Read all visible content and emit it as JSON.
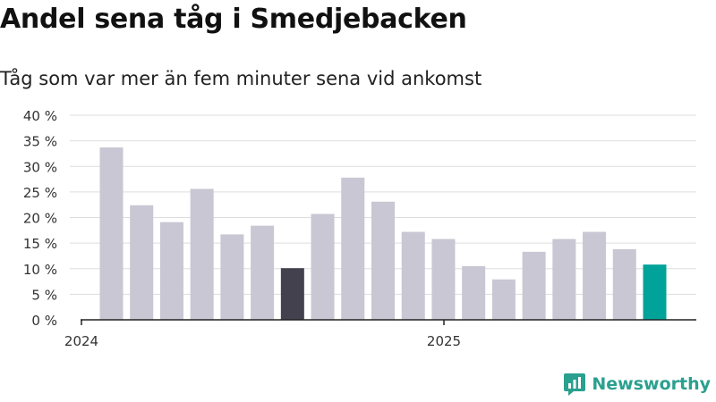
{
  "title": "Andel sena tåg i Smedjebacken",
  "subtitle": "Tåg som var mer än fem minuter sena vid ankomst",
  "brand": "Newsworthy",
  "colors": {
    "bar": "#c8c7d3",
    "highlight_dark": "#43414e",
    "highlight_accent": "#00a39a",
    "grid": "#dddddd",
    "brand": "#2aa08f"
  },
  "chart_data": {
    "type": "bar",
    "title": "Andel sena tåg i Smedjebacken",
    "subtitle": "Tåg som var mer än fem minuter sena vid ankomst",
    "xlabel": "",
    "ylabel": "",
    "ylim": [
      0,
      40
    ],
    "yticks": [
      "0 %",
      "5 %",
      "10 %",
      "15 %",
      "20 %",
      "25 %",
      "30 %",
      "35 %",
      "40 %"
    ],
    "ytick_values": [
      0,
      5,
      10,
      15,
      20,
      25,
      30,
      35,
      40
    ],
    "xticks": [
      "2024",
      "2025"
    ],
    "grid": true,
    "legend": "none",
    "values": [
      33.7,
      22.4,
      19.1,
      25.6,
      16.7,
      18.4,
      10.1,
      20.7,
      27.8,
      23.1,
      17.2,
      15.8,
      10.5,
      7.9,
      13.3,
      15.8,
      17.2,
      13.8,
      10.8
    ],
    "highlight": {
      "6": "dark",
      "18": "accent"
    }
  }
}
